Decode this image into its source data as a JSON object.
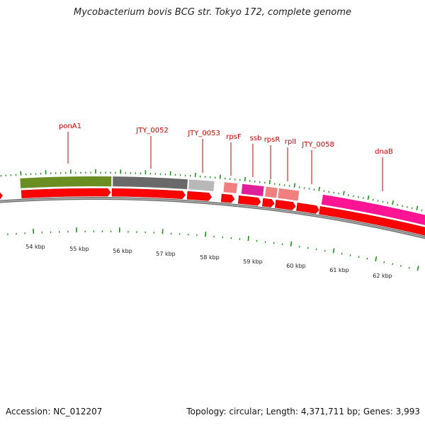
{
  "title": "Mycobacterium bovis BCG str. Tokyo 172, complete genome",
  "accession": "Accession: NC_012207",
  "summary": "Topology: circular; Length: 4,371,711 bp; Genes: 3,993",
  "colors": {
    "cds_strand": "#ff0000",
    "backbone": "#808080",
    "tick": "#228b22",
    "label": "#cc0000",
    "gene_ponA1": "#6b8e23",
    "gene_JTY_0052": "#696969",
    "gene_JTY_0053": "#b8b8b8",
    "gene_small_ribo": "#f08080",
    "gene_ssb": "#e0209a",
    "gene_dnaB": "#ff1493"
  },
  "gene_labels": [
    "ponA1",
    "JTY_0052",
    "JTY_0053",
    "rpsF",
    "ssb",
    "rpsR",
    "rplI",
    "JTY_0058",
    "dnaB"
  ],
  "scale_labels": [
    "54 kbp",
    "55 kbp",
    "56 kbp",
    "57 kbp",
    "58 kbp",
    "59 kbp",
    "60 kbp",
    "61 kbp",
    "62 kbp"
  ]
}
